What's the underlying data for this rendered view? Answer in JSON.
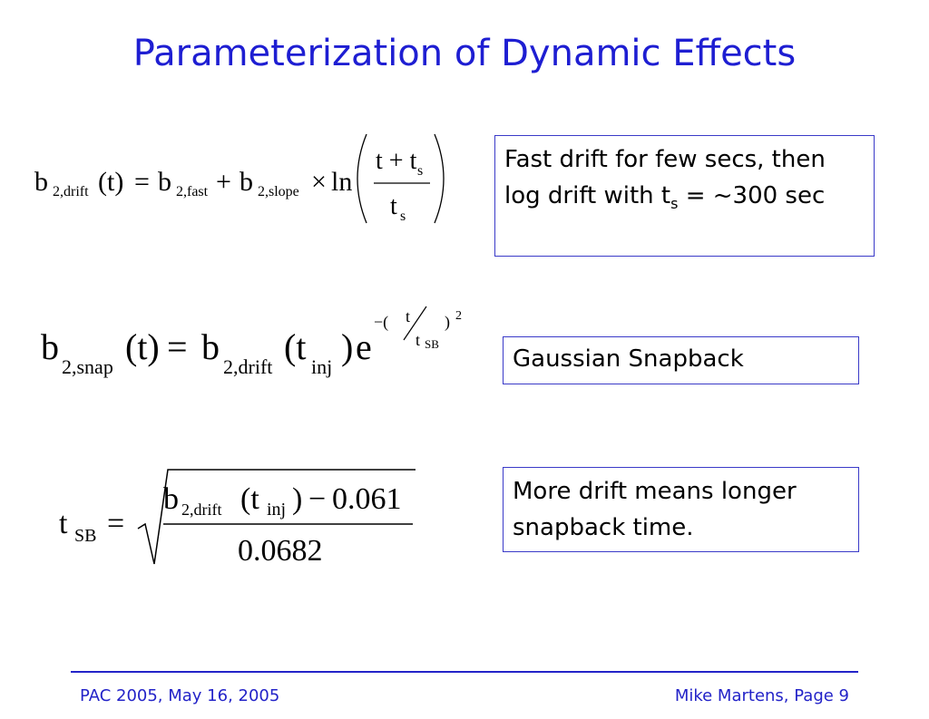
{
  "title": "Parameterization of Dynamic Effects",
  "equations": [
    {
      "parts": [
        "b",
        "2,drift",
        "(t)",
        "=",
        "b",
        "2,fast",
        "+",
        "b",
        "2,slope",
        "×",
        "ln",
        "t + t",
        "s",
        "t",
        "s"
      ],
      "note": {
        "text": "Fast drift for few secs, then log drift with t",
        "sub": "s",
        "tail": " = ~300 sec"
      }
    },
    {
      "parts": [
        "b",
        "2,snap",
        "(t)",
        "=",
        "b",
        "2,drift",
        "(t",
        "inj",
        ")",
        "e",
        "−(",
        "t",
        "t",
        "SB",
        ")",
        "2"
      ],
      "note": {
        "text": "Gaussian Snapback"
      }
    },
    {
      "parts": [
        "t",
        "SB",
        "=",
        "b",
        "2,drift",
        "(t",
        "inj",
        ")",
        "−",
        "0.061",
        "0.0682"
      ],
      "note": {
        "text": "More drift means longer snapback time."
      }
    }
  ],
  "footer": {
    "left": "PAC 2005, May 16, 2005",
    "right": "Mike Martens, Page 9"
  }
}
